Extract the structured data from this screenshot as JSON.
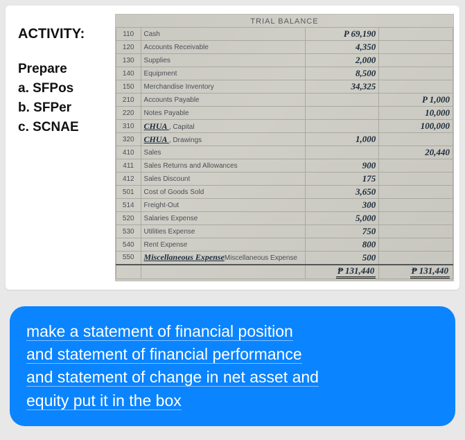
{
  "activity": {
    "title": "ACTIVITY:",
    "prepare": "Prepare",
    "a": "a. SFPos",
    "b": "b. SFPer",
    "c": "c. SCNAE"
  },
  "ledger": {
    "heading": "TRIAL BALANCE",
    "currency": "P",
    "rows": [
      {
        "code": "110",
        "name": "Cash",
        "dr": "69,190",
        "cr": ""
      },
      {
        "code": "120",
        "name": "Accounts Receivable",
        "dr": "4,350",
        "cr": ""
      },
      {
        "code": "130",
        "name": "Supplies",
        "dr": "2,000",
        "cr": ""
      },
      {
        "code": "140",
        "name": "Equipment",
        "dr": "8,500",
        "cr": ""
      },
      {
        "code": "150",
        "name": "Merchandise Inventory",
        "dr": "34,325",
        "cr": ""
      },
      {
        "code": "210",
        "name": "Accounts Payable",
        "dr": "",
        "cr": "1,000"
      },
      {
        "code": "220",
        "name": "Notes Payable",
        "dr": "",
        "cr": "10,000"
      },
      {
        "code": "310",
        "name": "CHUA , Capital",
        "hand": true,
        "dr": "",
        "cr": "100,000"
      },
      {
        "code": "320",
        "name": "CHUA , Drawings",
        "hand": true,
        "dr": "1,000",
        "cr": ""
      },
      {
        "code": "410",
        "name": "Sales",
        "dr": "",
        "cr": "20,440"
      },
      {
        "code": "411",
        "name": "Sales Returns and Allowances",
        "dr": "900",
        "cr": ""
      },
      {
        "code": "412",
        "name": "Sales Discount",
        "dr": "175",
        "cr": ""
      },
      {
        "code": "501",
        "name": "Cost of Goods Sold",
        "dr": "3,650",
        "cr": ""
      },
      {
        "code": "514",
        "name": "Freight-Out",
        "dr": "300",
        "cr": ""
      },
      {
        "code": "520",
        "name": "Salaries Expense",
        "dr": "5,000",
        "cr": ""
      },
      {
        "code": "530",
        "name": "Utilities Expense",
        "dr": "750",
        "cr": ""
      },
      {
        "code": "540",
        "name": "Rent Expense",
        "dr": "800",
        "cr": ""
      },
      {
        "code": "550",
        "name": "Miscellaneous Expense",
        "hand": true,
        "dr": "500",
        "cr": ""
      }
    ],
    "totals": {
      "dr": "131,440",
      "cr": "131,440"
    }
  },
  "message": {
    "l1": "make a statement of financial position",
    "l2": "and statement of financial performance",
    "l3": "and statement of change in net asset and",
    "l4": "equity put it in the box"
  },
  "colors": {
    "bubble": "#0a84ff",
    "paper": "#d0cfc7",
    "ink": "#1a2a3a"
  }
}
